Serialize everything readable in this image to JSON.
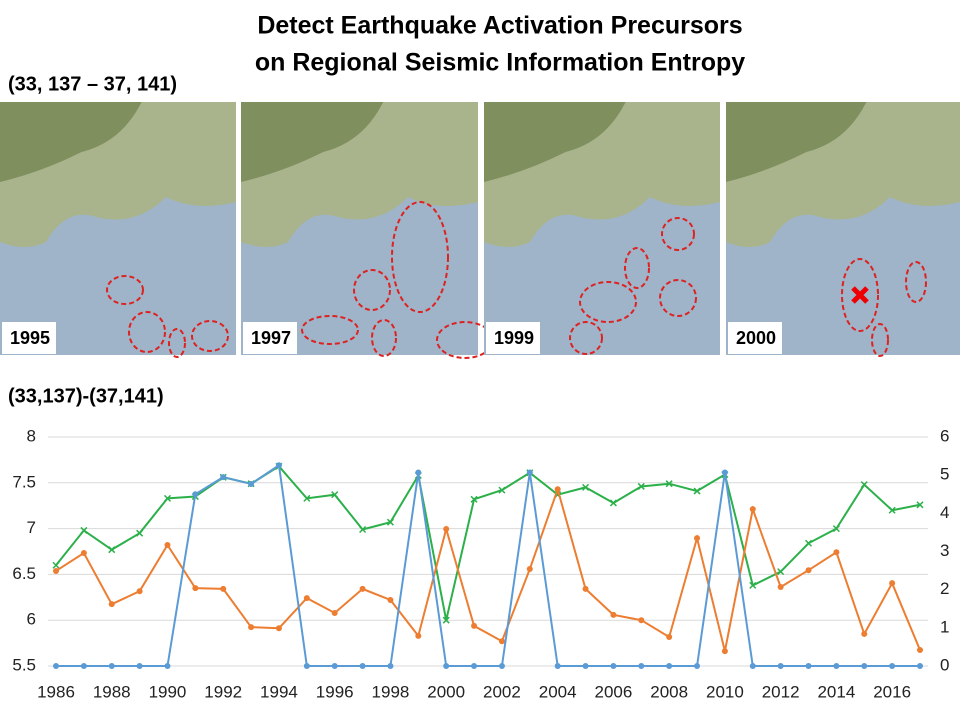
{
  "header": {
    "title_lines": [
      "Detect Earthquake Activation Precursors",
      "on Regional Seismic Information Entropy"
    ],
    "map_region": "(33, 137 – 37, 141)"
  },
  "maps": [
    {
      "year": "1995"
    },
    {
      "year": "1997"
    },
    {
      "year": "1999"
    },
    {
      "year": "2000"
    }
  ],
  "chart_data": {
    "type": "line",
    "title": "(33,137)-(37,141)",
    "x": [
      1986,
      1987,
      1988,
      1989,
      1990,
      1991,
      1992,
      1993,
      1994,
      1995,
      1996,
      1997,
      1998,
      1999,
      2000,
      2001,
      2002,
      2003,
      2004,
      2005,
      2006,
      2007,
      2008,
      2009,
      2010,
      2011,
      2012,
      2013,
      2014,
      2015,
      2016,
      2017
    ],
    "xlim": [
      1986,
      2017
    ],
    "xticks": [
      1986,
      1988,
      1990,
      1992,
      1994,
      1996,
      1998,
      2000,
      2002,
      2004,
      2006,
      2008,
      2010,
      2012,
      2014,
      2016
    ],
    "ylim": [
      5.5,
      8
    ],
    "yticks": [
      5.5,
      6,
      6.5,
      7,
      7.5,
      8
    ],
    "y2lim": [
      0,
      6
    ],
    "y2ticks": [
      0,
      1,
      2,
      3,
      4,
      5,
      6
    ],
    "grid": true,
    "series": [
      {
        "color": "#2bb04a",
        "marker": "x",
        "values": [
          6.6,
          6.98,
          6.77,
          6.95,
          7.33,
          7.35,
          7.56,
          7.49,
          7.68,
          7.33,
          7.37,
          6.99,
          7.07,
          7.58,
          6.0,
          7.32,
          7.42,
          7.61,
          7.37,
          7.45,
          7.28,
          7.46,
          7.49,
          7.41,
          7.59,
          6.38,
          6.53,
          6.84,
          7.0,
          7.48,
          7.2,
          7.26
        ]
      },
      {
        "color": "#ed7d31",
        "marker": "circle",
        "axis": "y2",
        "values": [
          2.49,
          2.96,
          1.62,
          1.96,
          3.17,
          2.04,
          2.02,
          1.02,
          0.99,
          1.78,
          1.39,
          2.02,
          1.73,
          0.79,
          3.59,
          1.05,
          0.65,
          2.54,
          4.63,
          2.02,
          1.34,
          1.2,
          0.76,
          3.35,
          0.39,
          4.11,
          2.07,
          2.51,
          2.98,
          0.84,
          2.17,
          0.42
        ]
      },
      {
        "color": "#5b9bd5",
        "marker": "circle",
        "axis": "y2",
        "values": [
          0,
          0,
          0,
          0,
          0,
          4.5,
          4.95,
          4.77,
          5.26,
          0,
          0,
          0,
          0,
          5.07,
          0,
          0,
          0,
          5.07,
          0,
          0,
          0,
          0,
          0,
          0,
          5.07,
          0,
          0,
          0,
          0,
          0,
          0,
          0
        ]
      }
    ]
  }
}
